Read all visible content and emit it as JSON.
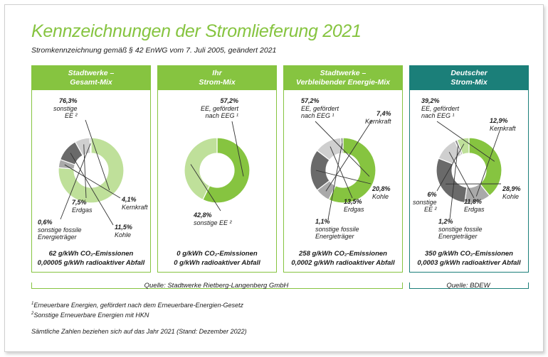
{
  "title": "Kennzeichnungen der Stromlieferung 2021",
  "subtitle": "Stromkennzeichnung gemäß § 42 EnWG vom 7. Juli 2005, geändert 2021",
  "colors": {
    "accent": "#86c440",
    "accent_dark": "#1b7f79",
    "ee_sonstige": "#bfe09a",
    "ee_eeg": "#86c440",
    "kohle": "#6a6a6a",
    "kernkraft": "#a9a9a9",
    "erdgas": "#cfcfcf",
    "sonstige_fossile": "#8a8a8a"
  },
  "panels": [
    {
      "head1": "Stadtwerke –",
      "head2": "Gesamt-Mix",
      "em1": "62 g/kWh CO₂-Emissionen",
      "em2": "0,00005 g/kWh radioaktiver Abfall",
      "labels": [
        {
          "pct": "76,3%",
          "l1": "sonstige",
          "l2": "EE ²"
        },
        {
          "pct": "4,1%",
          "l1": "Kernkraft",
          "l2": ""
        },
        {
          "pct": "11,5%",
          "l1": "Kohle",
          "l2": ""
        },
        {
          "pct": "7,5%",
          "l1": "Erdgas",
          "l2": ""
        },
        {
          "pct": "0,6%",
          "l1": "sonstige fossile",
          "l2": "Energieträger"
        }
      ]
    },
    {
      "head1": "Ihr",
      "head2": "Strom-Mix",
      "em1": "0 g/kWh CO₂-Emissionen",
      "em2": "0 g/kWh radioaktiver Abfall",
      "labels": [
        {
          "pct": "57,2%",
          "l1": "EE, gefördert",
          "l2": "nach EEG ¹"
        },
        {
          "pct": "42,8%",
          "l1": "sonstige EE ²",
          "l2": ""
        }
      ]
    },
    {
      "head1": "Stadtwerke –",
      "head2": "Verbleibender Energie-Mix",
      "em1": "258 g/kWh CO₂-Emissionen",
      "em2": "0,0002 g/kWh radioaktiver Abfall",
      "labels": [
        {
          "pct": "57,2%",
          "l1": "EE, gefördert",
          "l2": "nach EEG ¹"
        },
        {
          "pct": "7,4%",
          "l1": "Kernkraft",
          "l2": ""
        },
        {
          "pct": "20,8%",
          "l1": "Kohle",
          "l2": ""
        },
        {
          "pct": "13,5%",
          "l1": "Erdgas",
          "l2": ""
        },
        {
          "pct": "1,1%",
          "l1": "sonstige fossile",
          "l2": "Energieträger"
        }
      ]
    },
    {
      "head1": "Deutscher",
      "head2": "Strom-Mix",
      "em1": "350 g/kWh CO₂-Emissionen",
      "em2": "0,0003 g/kWh radioaktiver Abfall",
      "labels": [
        {
          "pct": "39,2%",
          "l1": "EE, gefördert",
          "l2": "nach EEG ¹"
        },
        {
          "pct": "12,9%",
          "l1": "Kernkraft",
          "l2": ""
        },
        {
          "pct": "28,9%",
          "l1": "Kohle",
          "l2": ""
        },
        {
          "pct": "11,8%",
          "l1": "Erdgas",
          "l2": ""
        },
        {
          "pct": "1,2%",
          "l1": "sonstige fossile",
          "l2": "Energieträger"
        },
        {
          "pct": "6%",
          "l1": "sonstige",
          "l2": "EE ²"
        }
      ]
    }
  ],
  "source_left": "Quelle: Stadtwerke Rietberg-Langenberg GmbH",
  "source_right": "Quelle: BDEW",
  "footnotes": {
    "fn1_mark": "1",
    "fn1": "Erneuerbare Energien, gefördert nach dem Erneuerbare-Energien-Gesetz",
    "fn2_mark": "2",
    "fn2": "Sonstige Erneuerbare Energien mit HKN",
    "note": "Sämtliche Zahlen beziehen sich auf das Jahr 2021 (Stand: Dezember 2022)"
  },
  "chart_data": [
    {
      "type": "pie",
      "title": "Stadtwerke – Gesamt-Mix",
      "categories": [
        "sonstige EE",
        "Kernkraft",
        "Kohle",
        "Erdgas",
        "sonstige fossile Energieträger"
      ],
      "values": [
        76.3,
        4.1,
        11.5,
        7.5,
        0.6
      ],
      "colors": [
        "#bfe09a",
        "#a9a9a9",
        "#6a6a6a",
        "#cfcfcf",
        "#8a8a8a"
      ]
    },
    {
      "type": "pie",
      "title": "Ihr Strom-Mix",
      "categories": [
        "EE, gefördert nach EEG",
        "sonstige EE"
      ],
      "values": [
        57.2,
        42.8
      ],
      "colors": [
        "#86c440",
        "#bfe09a"
      ]
    },
    {
      "type": "pie",
      "title": "Stadtwerke – Verbleibender Energie-Mix",
      "categories": [
        "EE, gefördert nach EEG",
        "Kernkraft",
        "Kohle",
        "Erdgas",
        "sonstige fossile Energieträger"
      ],
      "values": [
        57.2,
        7.4,
        20.8,
        13.5,
        1.1
      ],
      "colors": [
        "#86c440",
        "#a9a9a9",
        "#6a6a6a",
        "#cfcfcf",
        "#8a8a8a"
      ]
    },
    {
      "type": "pie",
      "title": "Deutscher Strom-Mix",
      "categories": [
        "EE, gefördert nach EEG",
        "Kernkraft",
        "Kohle",
        "Erdgas",
        "sonstige fossile Energieträger",
        "sonstige EE"
      ],
      "values": [
        39.2,
        12.9,
        28.9,
        11.8,
        1.2,
        6
      ],
      "colors": [
        "#86c440",
        "#a9a9a9",
        "#6a6a6a",
        "#cfcfcf",
        "#8a8a8a",
        "#bfe09a"
      ]
    }
  ]
}
